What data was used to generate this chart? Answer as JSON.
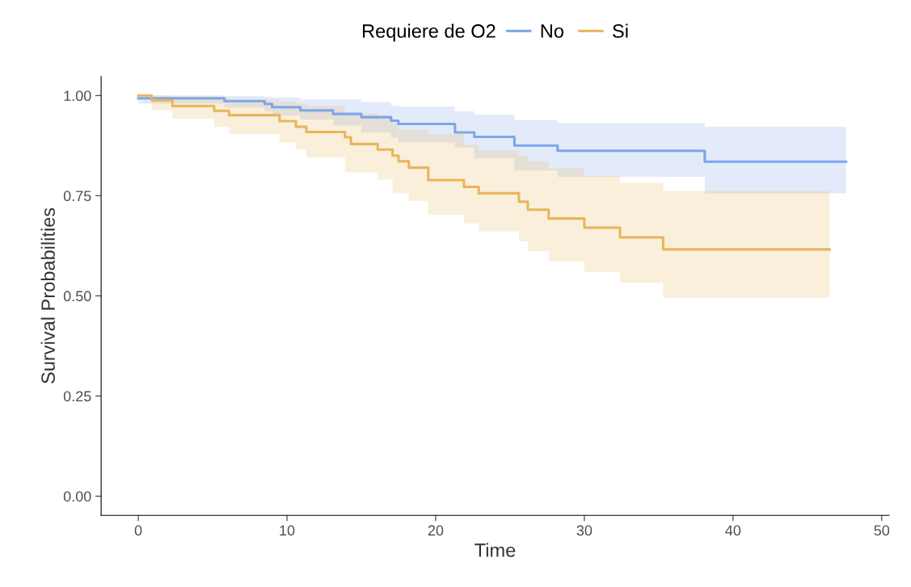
{
  "chart_data": {
    "type": "step",
    "xlabel": "Time",
    "ylabel": "Survival Probabilities",
    "legend_title": "Requiere de O2",
    "legend": "top",
    "grid": false,
    "xlim": [
      -2.5,
      50.5
    ],
    "xticks": [
      0,
      10,
      20,
      30,
      40,
      50
    ],
    "ylim": [
      -0.048,
      1.048
    ],
    "yticks": [
      {
        "value": 0,
        "label": "0.00"
      },
      {
        "value": 0.25,
        "label": "0.25"
      },
      {
        "value": 0.5,
        "label": "0.50"
      },
      {
        "value": 0.75,
        "label": "0.75"
      },
      {
        "value": 1,
        "label": "1.00"
      }
    ],
    "series": [
      {
        "name": "No",
        "color": "#7ea6e8",
        "x": [
          0,
          5.8,
          8.5,
          9.0,
          10.9,
          13.1,
          15.0,
          17.0,
          17.5,
          21.3,
          22.6,
          25.3,
          28.2,
          38.1,
          47.6
        ],
        "values": [
          0.993,
          0.986,
          0.979,
          0.971,
          0.963,
          0.954,
          0.946,
          0.937,
          0.929,
          0.908,
          0.897,
          0.875,
          0.862,
          0.835,
          0.835
        ],
        "lower": [
          0.98,
          0.97,
          0.96,
          0.95,
          0.94,
          0.925,
          0.908,
          0.894,
          0.883,
          0.87,
          0.843,
          0.813,
          0.797,
          0.756,
          0.756
        ],
        "upper": [
          1.0,
          0.999,
          0.997,
          0.995,
          0.99,
          0.99,
          0.984,
          0.975,
          0.973,
          0.961,
          0.953,
          0.939,
          0.931,
          0.922,
          0.922
        ]
      },
      {
        "name": "Si",
        "color": "#e8b55a",
        "x": [
          0,
          0.9,
          2.3,
          5.1,
          6.1,
          9.5,
          10.6,
          11.3,
          13.9,
          14.3,
          16.1,
          17.1,
          17.5,
          18.2,
          19.5,
          21.9,
          22.9,
          25.6,
          26.2,
          27.6,
          30.0,
          32.4,
          35.3,
          46.5
        ],
        "values": [
          1.0,
          0.988,
          0.974,
          0.962,
          0.951,
          0.936,
          0.922,
          0.909,
          0.896,
          0.879,
          0.865,
          0.85,
          0.836,
          0.82,
          0.789,
          0.772,
          0.756,
          0.735,
          0.715,
          0.693,
          0.67,
          0.646,
          0.616,
          0.616
        ],
        "lower": [
          1.0,
          0.964,
          0.942,
          0.922,
          0.904,
          0.883,
          0.865,
          0.845,
          0.808,
          0.808,
          0.79,
          0.756,
          0.756,
          0.737,
          0.702,
          0.681,
          0.661,
          0.636,
          0.611,
          0.586,
          0.56,
          0.533,
          0.496,
          0.496
        ],
        "upper": [
          1.0,
          1.0,
          0.998,
          0.995,
          0.99,
          0.985,
          0.98,
          0.974,
          0.956,
          0.956,
          0.949,
          0.93,
          0.914,
          0.914,
          0.904,
          0.877,
          0.863,
          0.85,
          0.836,
          0.818,
          0.799,
          0.782,
          0.762,
          0.762
        ]
      }
    ]
  }
}
